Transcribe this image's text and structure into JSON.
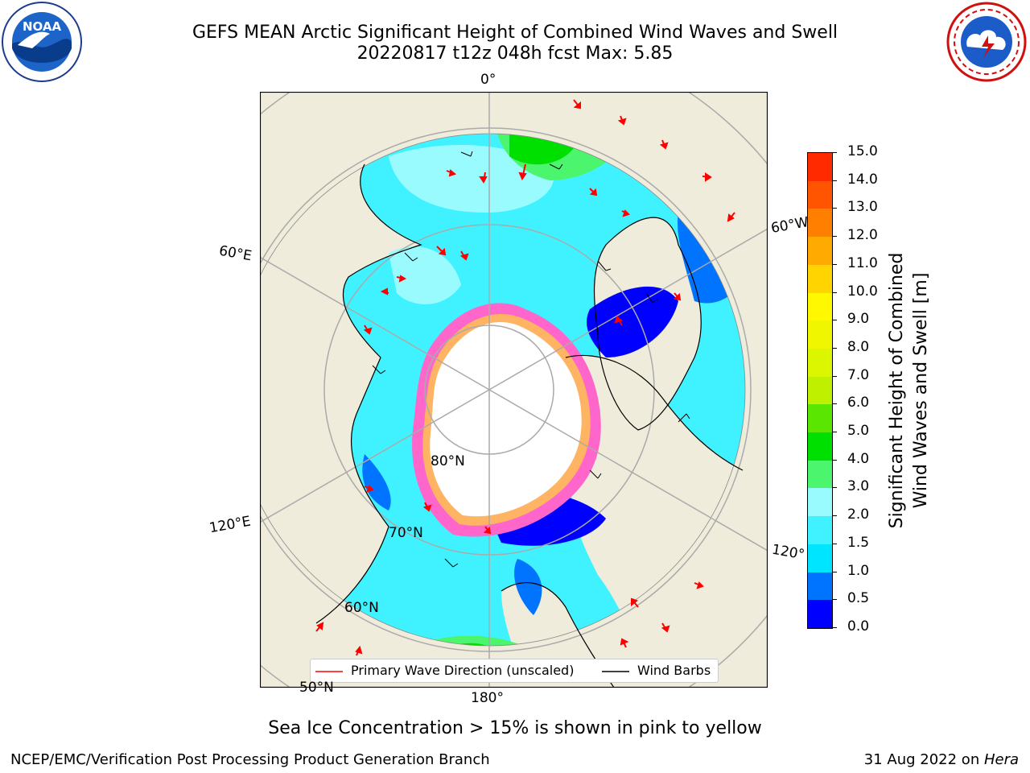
{
  "title": {
    "line1": "GEFS MEAN Arctic Significant Height of Combined Wind Waves and Swell",
    "line2": "20220817 t12z 048h fcst   Max: 5.85"
  },
  "logos": {
    "left": {
      "name": "NOAA",
      "icon": "noaa-logo",
      "text": "NOAA"
    },
    "right": {
      "name": "National Weather Service",
      "icon": "nws-logo"
    }
  },
  "map_labels": {
    "lon_0": "0°",
    "lon_180": "180°",
    "lon_60w": "60°W",
    "lon_60e": "60°E",
    "lon_120e": "120°E",
    "lon_120w": "120°",
    "lat_80": "80°N",
    "lat_70": "70°N",
    "lat_60": "60°N",
    "lat_50": "50°N"
  },
  "legend": {
    "primary_wave": "Primary Wave Direction (unscaled)",
    "wind_barbs": "Wind Barbs"
  },
  "colorbar": {
    "label_line1": "Significant Height of Combined",
    "label_line2": "Wind Waves and Swell [m]",
    "ticks": [
      "0.0",
      "0.5",
      "1.0",
      "1.5",
      "2.0",
      "3.0",
      "4.0",
      "5.0",
      "6.0",
      "7.0",
      "8.0",
      "9.0",
      "10.0",
      "11.0",
      "12.0",
      "13.0",
      "14.0",
      "15.0"
    ],
    "colors": [
      "#0000ff",
      "#0073ff",
      "#00e5ff",
      "#40f2ff",
      "#9afbff",
      "#4bf56e",
      "#00e000",
      "#5ae600",
      "#bef000",
      "#dcf500",
      "#f0f500",
      "#fff800",
      "#ffd400",
      "#ffaa00",
      "#ff8000",
      "#ff5500",
      "#ff2a00",
      "#ff0000"
    ]
  },
  "notes": {
    "sea_ice": "Sea Ice Concentration > 15% is shown in pink to yellow"
  },
  "footer": {
    "left": "NCEP/EMC/Verification Post Processing Product Generation Branch",
    "date": "31 Aug 2022 on ",
    "host": "Hera"
  },
  "palette": {
    "land": "#efecdc",
    "ice_open": "#ffffff",
    "grid": "#aaaaaa",
    "arrow": "#ff0000"
  }
}
